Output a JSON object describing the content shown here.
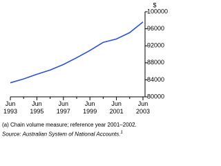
{
  "chart_data": {
    "type": "line",
    "y_label": "$",
    "categories": [
      "Jun 1993",
      null,
      "Jun 1995",
      null,
      "Jun 1997",
      null,
      "Jun 1999",
      null,
      "Jun 2001",
      null,
      "Jun 2003"
    ],
    "series": [
      {
        "color": "#2a54d6",
        "values": [
          83300,
          84200,
          85300,
          86300,
          87600,
          89200,
          90900,
          92800,
          93600,
          95100,
          97600
        ]
      }
    ],
    "ylim": [
      80000,
      100000
    ],
    "yticks": [
      80000,
      84000,
      88000,
      92000,
      96000,
      100000
    ],
    "grid": false
  },
  "footnote": "(a) Chain volume measure; reference year 2001–2002.",
  "source": "Source: Australian System of National Accounts.",
  "source_ref": "1"
}
